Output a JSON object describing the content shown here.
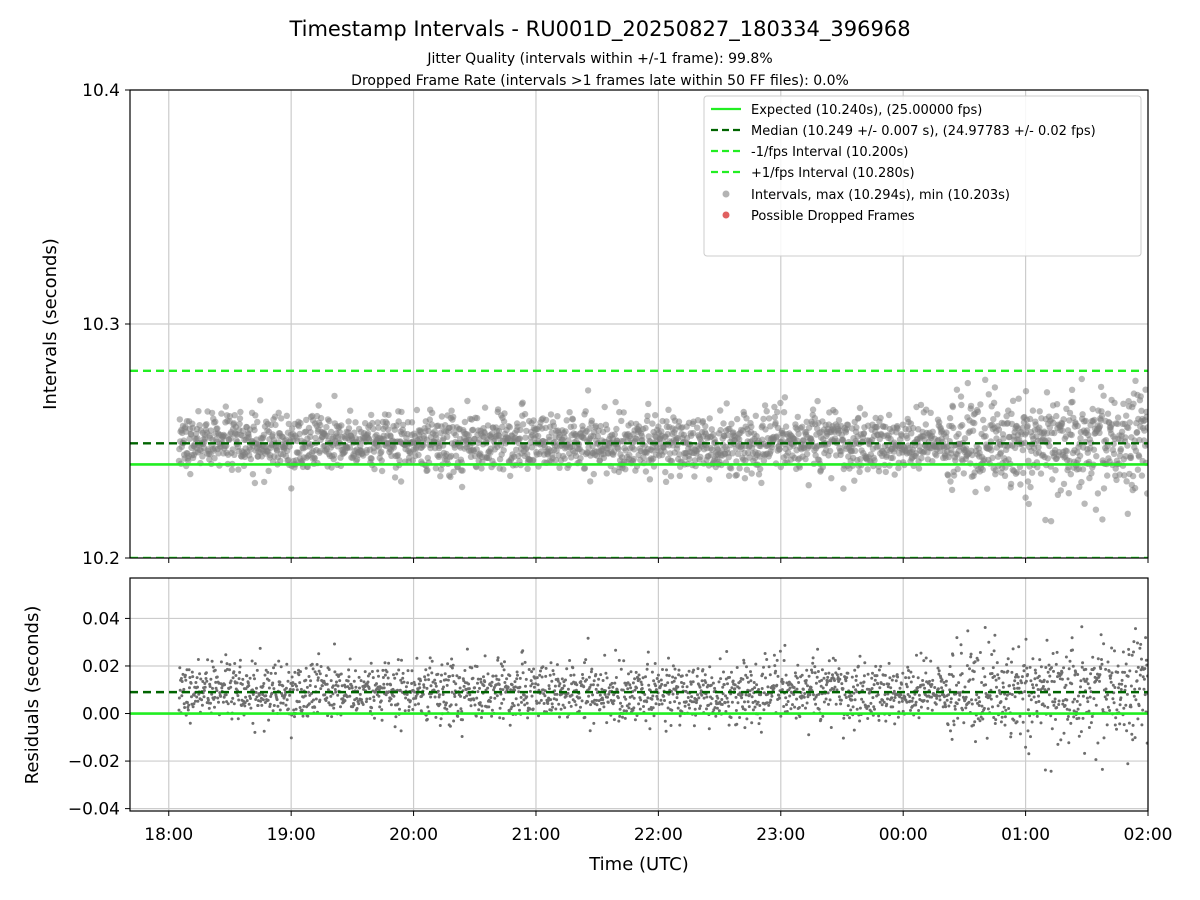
{
  "chart_data": {
    "type": "scatter",
    "title": "Timestamp Intervals - RU001D_20250827_180334_396968",
    "subtitle_1": "Jitter Quality (intervals within +/-1 frame): 99.8%",
    "subtitle_2": "Dropped Frame Rate (intervals >1 frames late within 50 FF files): 0.0%",
    "xlabel": "Time (UTC)",
    "x_time_range": [
      "17:41",
      "02:00"
    ],
    "x_tick_labels": [
      "18:00",
      "19:00",
      "20:00",
      "21:00",
      "22:00",
      "23:00",
      "00:00",
      "01:00",
      "02:00"
    ],
    "grid": true,
    "colors": {
      "expected": "#22ee22",
      "median": "#006400",
      "fps_interval": "#22ee22",
      "intervals": "#808080",
      "dropped": "#e06060"
    },
    "top": {
      "ylabel": "Intervals (seconds)",
      "ylim": [
        10.2,
        10.4
      ],
      "y_tick_labels": [
        "10.2",
        "10.3",
        "10.4"
      ],
      "expected": 10.24,
      "median": 10.249,
      "lower_fps": 10.2,
      "upper_fps": 10.28,
      "data_start_time": "18:05",
      "data_end_time": "02:00",
      "max_interval": 10.294,
      "min_interval": 10.203
    },
    "bottom": {
      "ylabel": "Residuals (seconds)",
      "ylim": [
        -0.041,
        0.057
      ],
      "y_tick_labels": [
        "−0.04",
        "−0.02",
        "0.00",
        "0.02",
        "0.04"
      ],
      "zero": 0.0,
      "median_residual": 0.009
    },
    "legend": {
      "placement": "top-right",
      "items": [
        "Expected (10.240s), (25.00000 fps)",
        "Median (10.249 +/- 0.007 s), (24.97783 +/- 0.02 fps)",
        "-1/fps Interval (10.200s)",
        "+1/fps Interval (10.280s)",
        "Intervals, max (10.294s), min (10.203s)",
        "Possible Dropped Frames"
      ]
    }
  }
}
